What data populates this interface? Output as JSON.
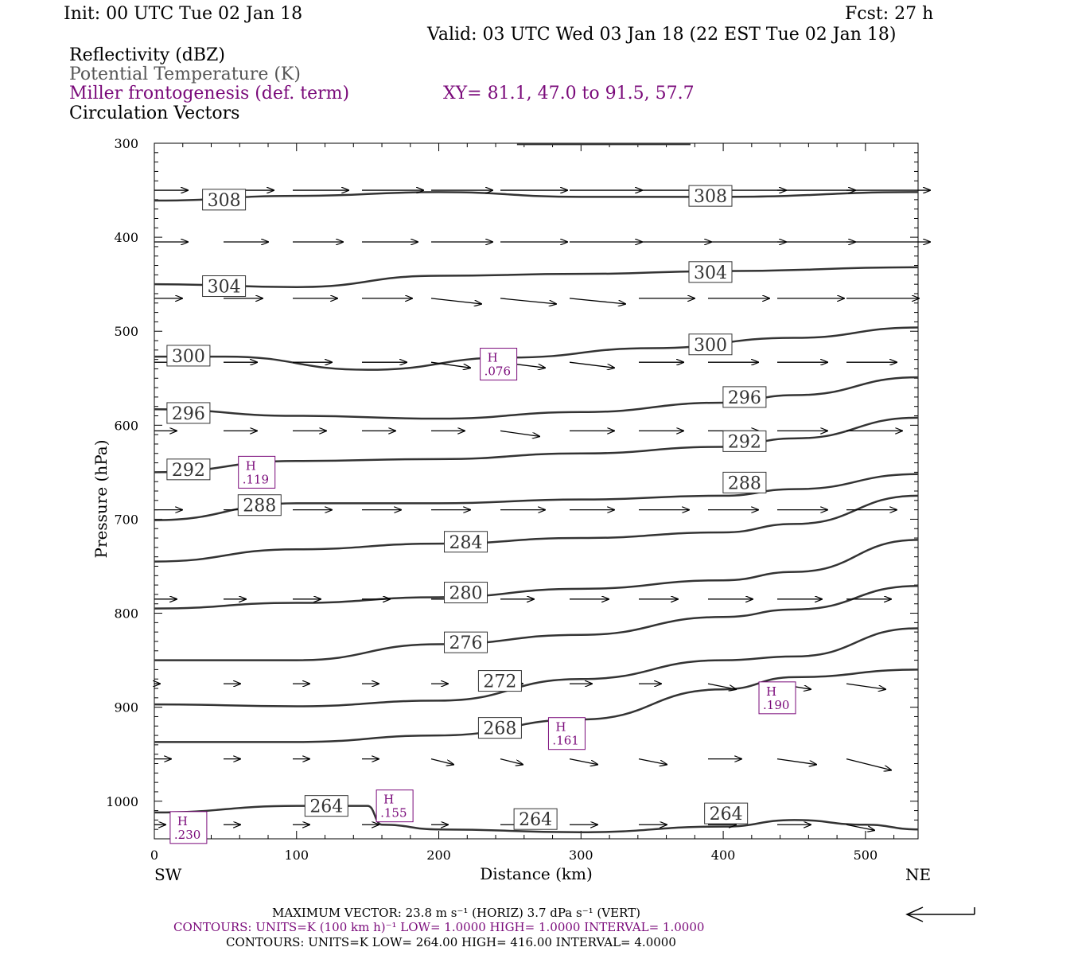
{
  "header": {
    "init": "Init: 00 UTC Tue 02 Jan 18",
    "fcst": "Fcst:   27 h",
    "valid": "Valid: 03 UTC Wed 03 Jan 18 (22 EST Tue 02 Jan 18)",
    "line1": "Reflectivity (dBZ)",
    "line2": "Potential Temperature (K)",
    "line3": "Miller frontogenesis (def. term)",
    "xy": "XY=  81.1, 47.0 to  91.5, 57.7",
    "line4": "Circulation Vectors"
  },
  "footer": {
    "maxvec": "MAXIMUM VECTOR:  23.8 m s⁻¹ (HORIZ)          3.7 dPa s⁻¹ (VERT)",
    "contours1": "CONTOURS:  UNITS=K (100 km h)⁻¹  LOW=   1.0000        HIGH=   1.0000        INTERVAL=    1.0000",
    "contours2": "CONTOURS:  UNITS=K  LOW=   264.00        HIGH=   416.00        INTERVAL=     4.0000",
    "sw": "SW",
    "ne": "NE"
  },
  "colors": {
    "theta": "#333333",
    "fronto": "#7a0a7a",
    "vector": "#000000"
  },
  "chart_data": {
    "type": "line",
    "xlabel": "Distance (km)",
    "ylabel": "Pressure (hPa)",
    "xlim": [
      0,
      537
    ],
    "ylim": [
      1040,
      300
    ],
    "x_ticks": [
      0,
      100,
      200,
      300,
      400,
      500
    ],
    "y_ticks": [
      300,
      400,
      500,
      600,
      700,
      800,
      900,
      1000
    ],
    "theta_contours": [
      {
        "label": "308",
        "points": [
          [
            0,
            361
          ],
          [
            100,
            356
          ],
          [
            200,
            352
          ],
          [
            300,
            357
          ],
          [
            400,
            357
          ],
          [
            537,
            352
          ]
        ],
        "labels_at": [
          [
            49,
            360
          ],
          [
            391,
            356
          ]
        ]
      },
      {
        "label": "304",
        "points": [
          [
            0,
            450
          ],
          [
            100,
            453
          ],
          [
            200,
            441
          ],
          [
            300,
            439
          ],
          [
            400,
            436
          ],
          [
            537,
            432
          ]
        ],
        "labels_at": [
          [
            49,
            452
          ],
          [
            391,
            437
          ]
        ]
      },
      {
        "label": "300",
        "points": [
          [
            0,
            527
          ],
          [
            50,
            527
          ],
          [
            150,
            541
          ],
          [
            250,
            528
          ],
          [
            350,
            518
          ],
          [
            450,
            507
          ],
          [
            537,
            496
          ]
        ],
        "labels_at": [
          [
            24,
            526
          ],
          [
            391,
            514
          ]
        ]
      },
      {
        "label": "296",
        "points": [
          [
            0,
            583
          ],
          [
            100,
            590
          ],
          [
            200,
            593
          ],
          [
            300,
            586
          ],
          [
            400,
            576
          ],
          [
            450,
            568
          ],
          [
            537,
            549
          ]
        ],
        "labels_at": [
          [
            24,
            587
          ],
          [
            415,
            570
          ]
        ]
      },
      {
        "label": "292",
        "points": [
          [
            0,
            650
          ],
          [
            100,
            638
          ],
          [
            200,
            636
          ],
          [
            300,
            630
          ],
          [
            400,
            623
          ],
          [
            450,
            614
          ],
          [
            537,
            592
          ]
        ],
        "labels_at": [
          [
            24,
            647
          ],
          [
            415,
            617
          ]
        ]
      },
      {
        "label": "288",
        "points": [
          [
            0,
            701
          ],
          [
            100,
            683
          ],
          [
            200,
            683
          ],
          [
            300,
            679
          ],
          [
            400,
            675
          ],
          [
            450,
            668
          ],
          [
            537,
            652
          ]
        ],
        "labels_at": [
          [
            74,
            685
          ],
          [
            415,
            661
          ]
        ]
      },
      {
        "label": "284",
        "points": [
          [
            0,
            745
          ],
          [
            100,
            732
          ],
          [
            200,
            726
          ],
          [
            300,
            720
          ],
          [
            400,
            714
          ],
          [
            450,
            705
          ],
          [
            537,
            675
          ]
        ],
        "labels_at": [
          [
            219,
            724
          ],
          [
            0,
            0
          ]
        ]
      },
      {
        "label": "280",
        "points": [
          [
            0,
            795
          ],
          [
            100,
            789
          ],
          [
            200,
            783
          ],
          [
            300,
            774
          ],
          [
            400,
            765
          ],
          [
            450,
            756
          ],
          [
            537,
            722
          ]
        ],
        "labels_at": [
          [
            219,
            778
          ],
          [
            0,
            0
          ]
        ]
      },
      {
        "label": "276",
        "points": [
          [
            0,
            850
          ],
          [
            100,
            850
          ],
          [
            200,
            833
          ],
          [
            300,
            823
          ],
          [
            400,
            804
          ],
          [
            450,
            796
          ],
          [
            537,
            771
          ]
        ],
        "labels_at": [
          [
            219,
            831
          ],
          [
            0,
            0
          ]
        ]
      },
      {
        "label": "272",
        "points": [
          [
            0,
            897
          ],
          [
            100,
            899
          ],
          [
            200,
            893
          ],
          [
            300,
            870
          ],
          [
            400,
            850
          ],
          [
            450,
            846
          ],
          [
            537,
            816
          ]
        ],
        "labels_at": [
          [
            243,
            872
          ],
          [
            0,
            0
          ]
        ]
      },
      {
        "label": "268",
        "points": [
          [
            0,
            937
          ],
          [
            100,
            937
          ],
          [
            200,
            930
          ],
          [
            300,
            913
          ],
          [
            400,
            881
          ],
          [
            450,
            868
          ],
          [
            537,
            860
          ]
        ],
        "labels_at": [
          [
            243,
            922
          ],
          [
            0,
            0
          ]
        ]
      },
      {
        "label": "264",
        "points": [
          [
            0,
            1012
          ],
          [
            100,
            1005
          ],
          [
            150,
            1005
          ],
          [
            160,
            1025
          ],
          [
            200,
            1030
          ],
          [
            300,
            1033
          ],
          [
            400,
            1027
          ],
          [
            450,
            1020
          ],
          [
            500,
            1025
          ],
          [
            537,
            1030
          ]
        ],
        "labels_at": [
          [
            121,
            1005
          ],
          [
            268,
            1019
          ]
        ]
      }
    ],
    "extra_labels": [
      {
        "label": "264",
        "x": 402,
        "y": 1013
      }
    ],
    "frontogenesis_highs": [
      {
        "mark": "H",
        "value": ".076",
        "x": 242,
        "y": 535
      },
      {
        "mark": "H",
        "value": ".119",
        "x": 72,
        "y": 650
      },
      {
        "mark": "H",
        "value": ".190",
        "x": 438,
        "y": 890
      },
      {
        "mark": "H",
        "value": ".161",
        "x": 290,
        "y": 928
      },
      {
        "mark": "H",
        "value": ".155",
        "x": 169,
        "y": 1005
      },
      {
        "mark": "H",
        "value": ".230",
        "x": 24,
        "y": 1028
      }
    ],
    "vector_rows": [
      {
        "p": 350,
        "u": [
          0.6,
          0.9,
          1.0,
          1.1,
          1.1,
          1.2,
          1.3,
          1.4,
          1.4,
          1.4,
          1.5
        ],
        "w": [
          0,
          0,
          0,
          0,
          0,
          0,
          0,
          0,
          0,
          0,
          0
        ]
      },
      {
        "p": 405,
        "u": [
          0.6,
          0.8,
          0.9,
          1.0,
          1.1,
          1.2,
          1.3,
          1.3,
          1.4,
          1.4,
          1.5
        ],
        "w": [
          0,
          0,
          0,
          0,
          0,
          0,
          0,
          0,
          0,
          0,
          0
        ]
      },
      {
        "p": 465,
        "u": [
          0.5,
          0.7,
          0.8,
          0.9,
          0.9,
          1.0,
          1.0,
          1.0,
          1.1,
          1.2,
          1.3
        ],
        "w": [
          0,
          0,
          0,
          0,
          0.1,
          0.1,
          0.1,
          0,
          0,
          0,
          0
        ]
      },
      {
        "p": 533,
        "u": [
          0.4,
          0.6,
          0.7,
          0.8,
          0.7,
          0.8,
          0.8,
          0.8,
          0.9,
          0.9,
          0.9
        ],
        "w": [
          0,
          0,
          0,
          0,
          0.1,
          0.1,
          0.1,
          0,
          0,
          0,
          0
        ]
      },
      {
        "p": 606,
        "u": [
          0.4,
          0.6,
          0.6,
          0.6,
          0.6,
          0.7,
          0.8,
          0.8,
          0.9,
          0.9,
          1.0
        ],
        "w": [
          0,
          0,
          0,
          0,
          0,
          0.1,
          0,
          0,
          0,
          0,
          0
        ]
      },
      {
        "p": 690,
        "u": [
          0.5,
          0.6,
          0.7,
          0.7,
          0.7,
          0.8,
          0.8,
          0.9,
          0.9,
          0.9,
          0.9
        ],
        "w": [
          0,
          0,
          0,
          0,
          0,
          0,
          0,
          0,
          0,
          0,
          0
        ]
      },
      {
        "p": 785,
        "u": [
          0.4,
          0.4,
          0.5,
          0.5,
          0.6,
          0.6,
          0.7,
          0.7,
          0.8,
          0.8,
          0.8
        ],
        "w": [
          0,
          0,
          0,
          0,
          0,
          0,
          0,
          0,
          0,
          0,
          0
        ]
      },
      {
        "p": 875,
        "u": [
          0.1,
          0.3,
          0.3,
          0.3,
          0.3,
          0.4,
          0.4,
          0.4,
          0.5,
          0.6,
          0.7
        ],
        "w": [
          0,
          0,
          0,
          0,
          0,
          0,
          0,
          0,
          0.1,
          0.1,
          0.1
        ]
      },
      {
        "p": 955,
        "u": [
          0.3,
          0.3,
          0.3,
          0.3,
          0.4,
          0.4,
          0.5,
          0.5,
          0.6,
          0.7,
          0.8
        ],
        "w": [
          0,
          0,
          0,
          0,
          0.1,
          0.1,
          0.1,
          0.1,
          0,
          0.1,
          0.2
        ]
      },
      {
        "p": 1025,
        "u": [
          0.2,
          0.3,
          0.3,
          0.3,
          0.3,
          0.4,
          0.5,
          0.5,
          0.5,
          0.6,
          0.5
        ],
        "w": [
          0,
          0,
          0,
          0,
          0,
          0,
          0,
          0,
          0,
          0,
          0.1
        ]
      }
    ]
  }
}
